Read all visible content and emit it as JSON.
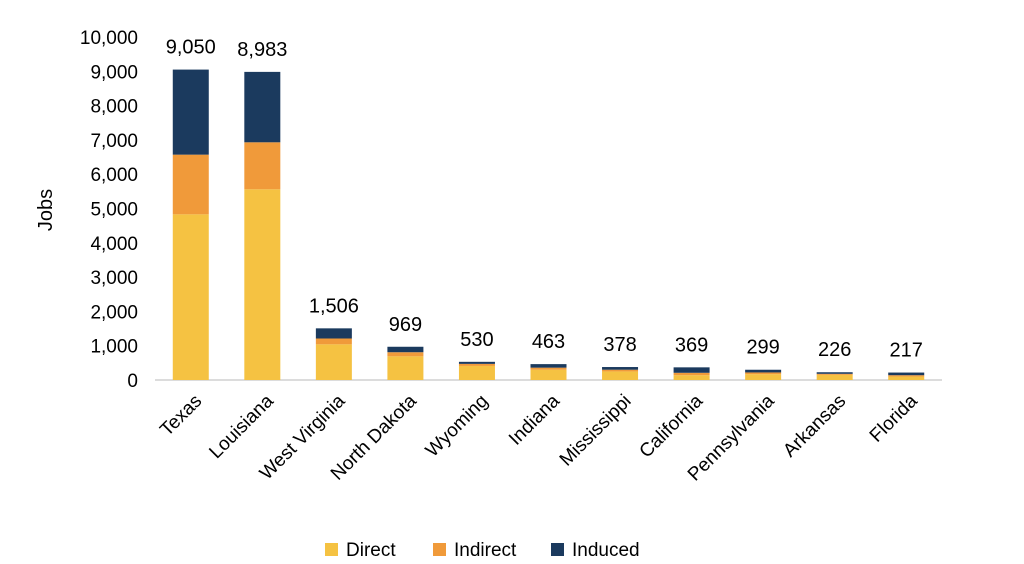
{
  "chart_data": {
    "type": "bar",
    "stacked": true,
    "title": "",
    "xlabel": "",
    "ylabel": "Jobs",
    "ylim": [
      0,
      10000
    ],
    "yticks": [
      "0",
      "1,000",
      "2,000",
      "3,000",
      "4,000",
      "5,000",
      "6,000",
      "7,000",
      "8,000",
      "9,000",
      "10,000"
    ],
    "grid": false,
    "legend_position": "bottom",
    "categories": [
      "Texas",
      "Louisiana",
      "West Virginia",
      "North Dakota",
      "Wyoming",
      "Indiana",
      "Mississippi",
      "California",
      "Pennsylvania",
      "Arkansas",
      "Florida"
    ],
    "series": [
      {
        "name": "Direct",
        "color": "#F5C242",
        "values": [
          4830,
          5560,
          1040,
          690,
          410,
          300,
          250,
          140,
          170,
          150,
          100
        ]
      },
      {
        "name": "Indirect",
        "color": "#F09A3A",
        "values": [
          1740,
          1370,
          170,
          120,
          60,
          60,
          50,
          70,
          50,
          30,
          40
        ]
      },
      {
        "name": "Induced",
        "color": "#1B3A5E",
        "values": [
          2480,
          2053,
          296,
          159,
          60,
          103,
          78,
          159,
          79,
          46,
          77
        ]
      }
    ],
    "totals": [
      "9,050",
      "8,983",
      "1,506",
      "969",
      "530",
      "463",
      "378",
      "369",
      "299",
      "226",
      "217"
    ]
  }
}
